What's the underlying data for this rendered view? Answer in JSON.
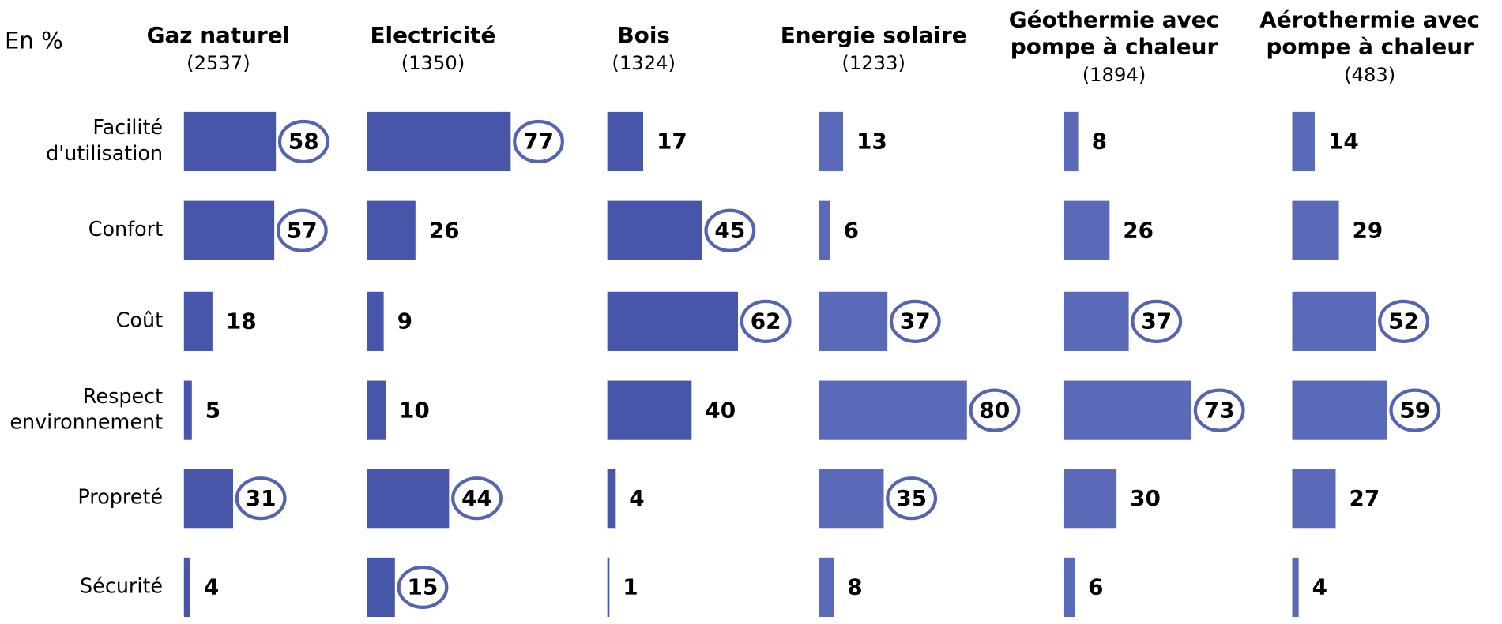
{
  "unit_label": "En %",
  "categories": [
    [
      "Facilité",
      "d'utilisation"
    ],
    [
      "Confort"
    ],
    [
      "Coût"
    ],
    [
      "Respect",
      "environnement"
    ],
    [
      "Propreté"
    ],
    [
      "Sécurité"
    ]
  ],
  "chart_data": [
    {
      "type": "bar",
      "title": [
        "Gaz naturel"
      ],
      "subtitle": "(2537)",
      "color": "#4756a8",
      "values": [
        58,
        57,
        18,
        5,
        31,
        4
      ],
      "circled": [
        true,
        true,
        false,
        false,
        true,
        false
      ]
    },
    {
      "type": "bar",
      "title": [
        "Electricité"
      ],
      "subtitle": "(1350)",
      "color": "#4756a8",
      "values": [
        77,
        26,
        9,
        10,
        44,
        15
      ],
      "circled": [
        true,
        false,
        false,
        false,
        true,
        true
      ]
    },
    {
      "type": "bar",
      "title": [
        "Bois"
      ],
      "subtitle": "(1324)",
      "color": "#4756a8",
      "values": [
        17,
        45,
        62,
        40,
        4,
        1
      ],
      "circled": [
        false,
        true,
        true,
        false,
        false,
        false
      ]
    },
    {
      "type": "bar",
      "title": [
        "Energie solaire"
      ],
      "subtitle": "(1233)",
      "color": "#5a6ab8",
      "values": [
        13,
        6,
        37,
        80,
        35,
        8
      ],
      "circled": [
        false,
        false,
        true,
        true,
        true,
        false
      ]
    },
    {
      "type": "bar",
      "title": [
        "Géothermie avec",
        "pompe à chaleur"
      ],
      "subtitle": "(1894)",
      "color": "#5a6ab8",
      "values": [
        8,
        26,
        37,
        73,
        30,
        6
      ],
      "circled": [
        false,
        false,
        true,
        true,
        false,
        false
      ]
    },
    {
      "type": "bar",
      "title": [
        "Aérothermie avec",
        "pompe à chaleur"
      ],
      "subtitle": "(483)",
      "color": "#5a6ab8",
      "values": [
        14,
        29,
        52,
        59,
        27,
        4
      ],
      "circled": [
        false,
        false,
        true,
        true,
        false,
        false
      ]
    }
  ]
}
